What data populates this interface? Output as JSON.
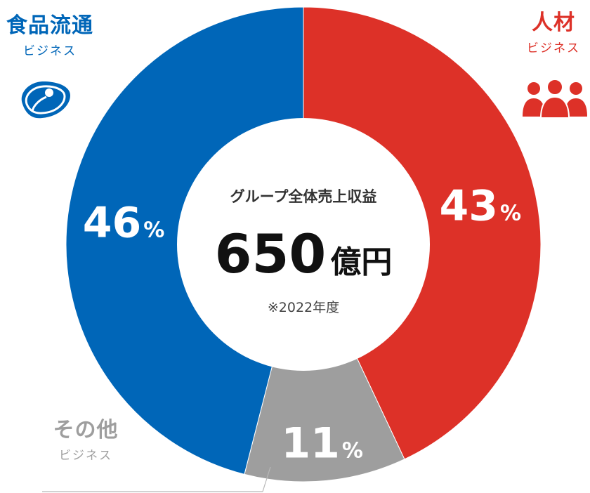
{
  "chart_data": {
    "type": "pie",
    "style": "donut",
    "center": {
      "label": "グループ全体売上収益",
      "value": "650",
      "unit": "億円",
      "note": "※2022年度"
    },
    "slices": [
      {
        "name": "人材ビジネス",
        "value": 43,
        "label": "43",
        "unit": "%",
        "color": "#dd3128"
      },
      {
        "name": "その他ビジネス",
        "value": 11,
        "label": "11",
        "unit": "%",
        "color": "#9e9e9e"
      },
      {
        "name": "食品流通ビジネス",
        "value": 46,
        "label": "46",
        "unit": "%",
        "color": "#0066b8"
      }
    ]
  },
  "legend": {
    "food": {
      "title": "食品流通",
      "sub": "ビジネス",
      "color": "#0066b8",
      "icon": "meat-icon"
    },
    "hr": {
      "title": "人材",
      "sub": "ビジネス",
      "color": "#dd3128",
      "icon": "people-icon"
    },
    "other": {
      "title": "その他",
      "sub": "ビジネス",
      "color": "#9e9e9e"
    }
  }
}
